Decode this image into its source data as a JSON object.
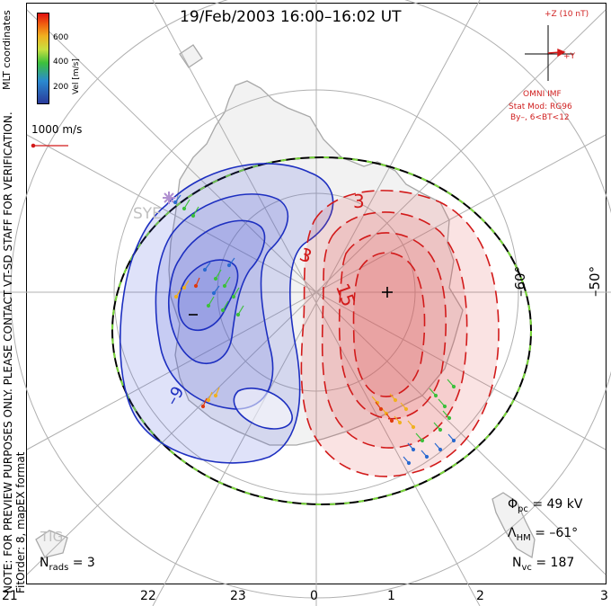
{
  "title": "19/Feb/2003 16:00–16:02 UT",
  "legend": {
    "labels": [
      "600",
      "400",
      "200"
    ],
    "unit_label": "Vel [m/s]",
    "coords_label": "MLT coordinates",
    "scale_label": "1000 m/s"
  },
  "imf": {
    "z_label": "+Z (10 nT)",
    "y_label": "+Y",
    "omni": "OMNI IMF",
    "stat_mod": "Stat Mod: RG96",
    "bt": "By–, 6<BT<12"
  },
  "contours": {
    "neg_label": "–9",
    "pos_label_a": "3",
    "pos_label_b": "3",
    "pos_label_c": "15",
    "min_mark": "–",
    "max_mark": "+"
  },
  "lat_labels": {
    "a": "–60°",
    "b": "–50°"
  },
  "stations": {
    "sye": "SYE",
    "tig": "TIG"
  },
  "side_note": {
    "line1": "NOTE: FOR PREVIEW PURPOSES ONLY. PLEASE CONTACT VT-SD STAFF FOR VERIFICATION.",
    "line2": "FitOrder: 8, mapEX format"
  },
  "stats": {
    "nrads": "N",
    "nrads_sub": "rads",
    "nrads_val": "= 3",
    "phi": "Φ",
    "phi_sub": "pc",
    "phi_val": "= 49 kV",
    "lam": "Λ",
    "lam_sub": "HM",
    "lam_val": "= –61°",
    "nvc": "N",
    "nvc_sub": "vc",
    "nvc_val": "= 187"
  },
  "mlt_ticks": [
    "21",
    "22",
    "23",
    "0",
    "1",
    "2",
    "3"
  ],
  "colors": {
    "neg": "#1d2fc0",
    "pos": "#d21a1a",
    "grid": "#b0b0b0"
  }
}
